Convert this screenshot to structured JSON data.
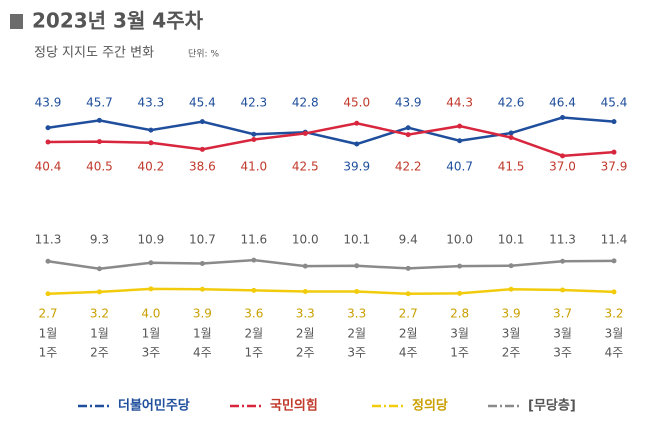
{
  "chart_data": {
    "type": "line",
    "title": "2023년 3월 4주차",
    "subtitle": "정당 지지도 주간 변화",
    "unit_note": "단위: %",
    "categories": [
      [
        "1월",
        "1주"
      ],
      [
        "1월",
        "2주"
      ],
      [
        "1월",
        "3주"
      ],
      [
        "1월",
        "4주"
      ],
      [
        "2월",
        "1주"
      ],
      [
        "2월",
        "2주"
      ],
      [
        "2월",
        "3주"
      ],
      [
        "2월",
        "4주"
      ],
      [
        "3월",
        "1주"
      ],
      [
        "3월",
        "2주"
      ],
      [
        "3월",
        "3주"
      ],
      [
        "3월",
        "4주"
      ]
    ],
    "ylim": [
      35,
      48
    ],
    "y2lim": [
      0,
      14
    ],
    "series": [
      {
        "name": "더불어민주당",
        "color": "#1f4e9c",
        "axis": "y",
        "values": [
          43.9,
          45.7,
          43.3,
          45.4,
          42.3,
          42.8,
          39.9,
          43.9,
          40.7,
          42.6,
          46.4,
          45.4
        ],
        "value_labels": [
          "43.9",
          "45.7",
          "43.3",
          "45.4",
          "42.3",
          "42.8",
          "39.9",
          "43.9",
          "40.7",
          "42.6",
          "46.4",
          "45.4"
        ]
      },
      {
        "name": "국민의힘",
        "color": "#d7263d",
        "axis": "y",
        "values": [
          40.4,
          40.5,
          40.2,
          38.6,
          41.0,
          42.5,
          45.0,
          42.2,
          44.3,
          41.5,
          37.0,
          37.9
        ],
        "value_labels": [
          "40.4",
          "40.5",
          "40.2",
          "38.6",
          "41.0",
          "42.5",
          "45.0",
          "42.2",
          "44.3",
          "41.5",
          "37.0",
          "37.9"
        ]
      },
      {
        "name": "정의당",
        "color": "#f2cc0c",
        "axis": "y2",
        "values": [
          2.7,
          3.2,
          4.0,
          3.9,
          3.6,
          3.3,
          3.3,
          2.7,
          2.8,
          3.9,
          3.7,
          3.2
        ],
        "value_labels": [
          "2.7",
          "3.2",
          "4.0",
          "3.9",
          "3.6",
          "3.3",
          "3.3",
          "2.7",
          "2.8",
          "3.9",
          "3.7",
          "3.2"
        ]
      },
      {
        "name": "[무당층]",
        "color": "#8a8a8a",
        "axis": "y2",
        "values": [
          11.3,
          9.3,
          10.9,
          10.7,
          11.6,
          10.0,
          10.1,
          9.4,
          10.0,
          10.1,
          11.3,
          11.4
        ],
        "value_labels": [
          "11.3",
          "9.3",
          "10.9",
          "10.7",
          "11.6",
          "10.0",
          "10.1",
          "9.4",
          "10.0",
          "10.1",
          "11.3",
          "11.4"
        ]
      }
    ]
  }
}
